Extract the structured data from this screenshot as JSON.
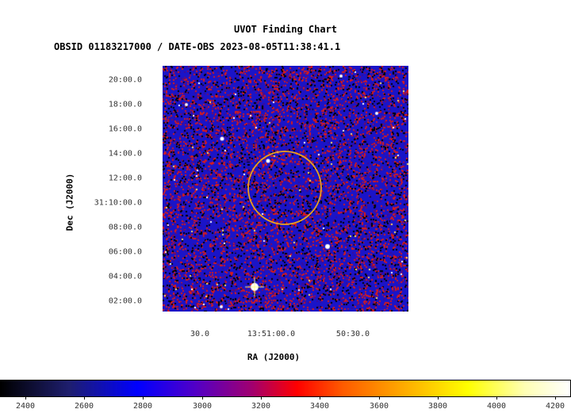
{
  "title": "UVOT Finding Chart",
  "subtitle": "OBSID 01183217000 / DATE-OBS 2023-08-05T11:38:41.1",
  "xlabel": "RA (J2000)",
  "ylabel": "Dec (J2000)",
  "dec_ticks": [
    "20:00.0",
    "18:00.0",
    "16:00.0",
    "14:00.0",
    "12:00.0",
    "31:10:00.0",
    "08:00.0",
    "06:00.0",
    "04:00.0",
    "02:00.0"
  ],
  "ra_ticks": [
    "30.0",
    "13:51:00.0",
    "50:30.0"
  ],
  "colorbar_ticks": [
    "2400",
    "2600",
    "2800",
    "3000",
    "3200",
    "3400",
    "3600",
    "3800",
    "4000",
    "4200"
  ],
  "colors": {
    "image_background": "#1a14c8",
    "source_circle": "#e8a020",
    "noise_red": "#d81a1a",
    "noise_black": "#000000",
    "star": "#ffffff"
  }
}
